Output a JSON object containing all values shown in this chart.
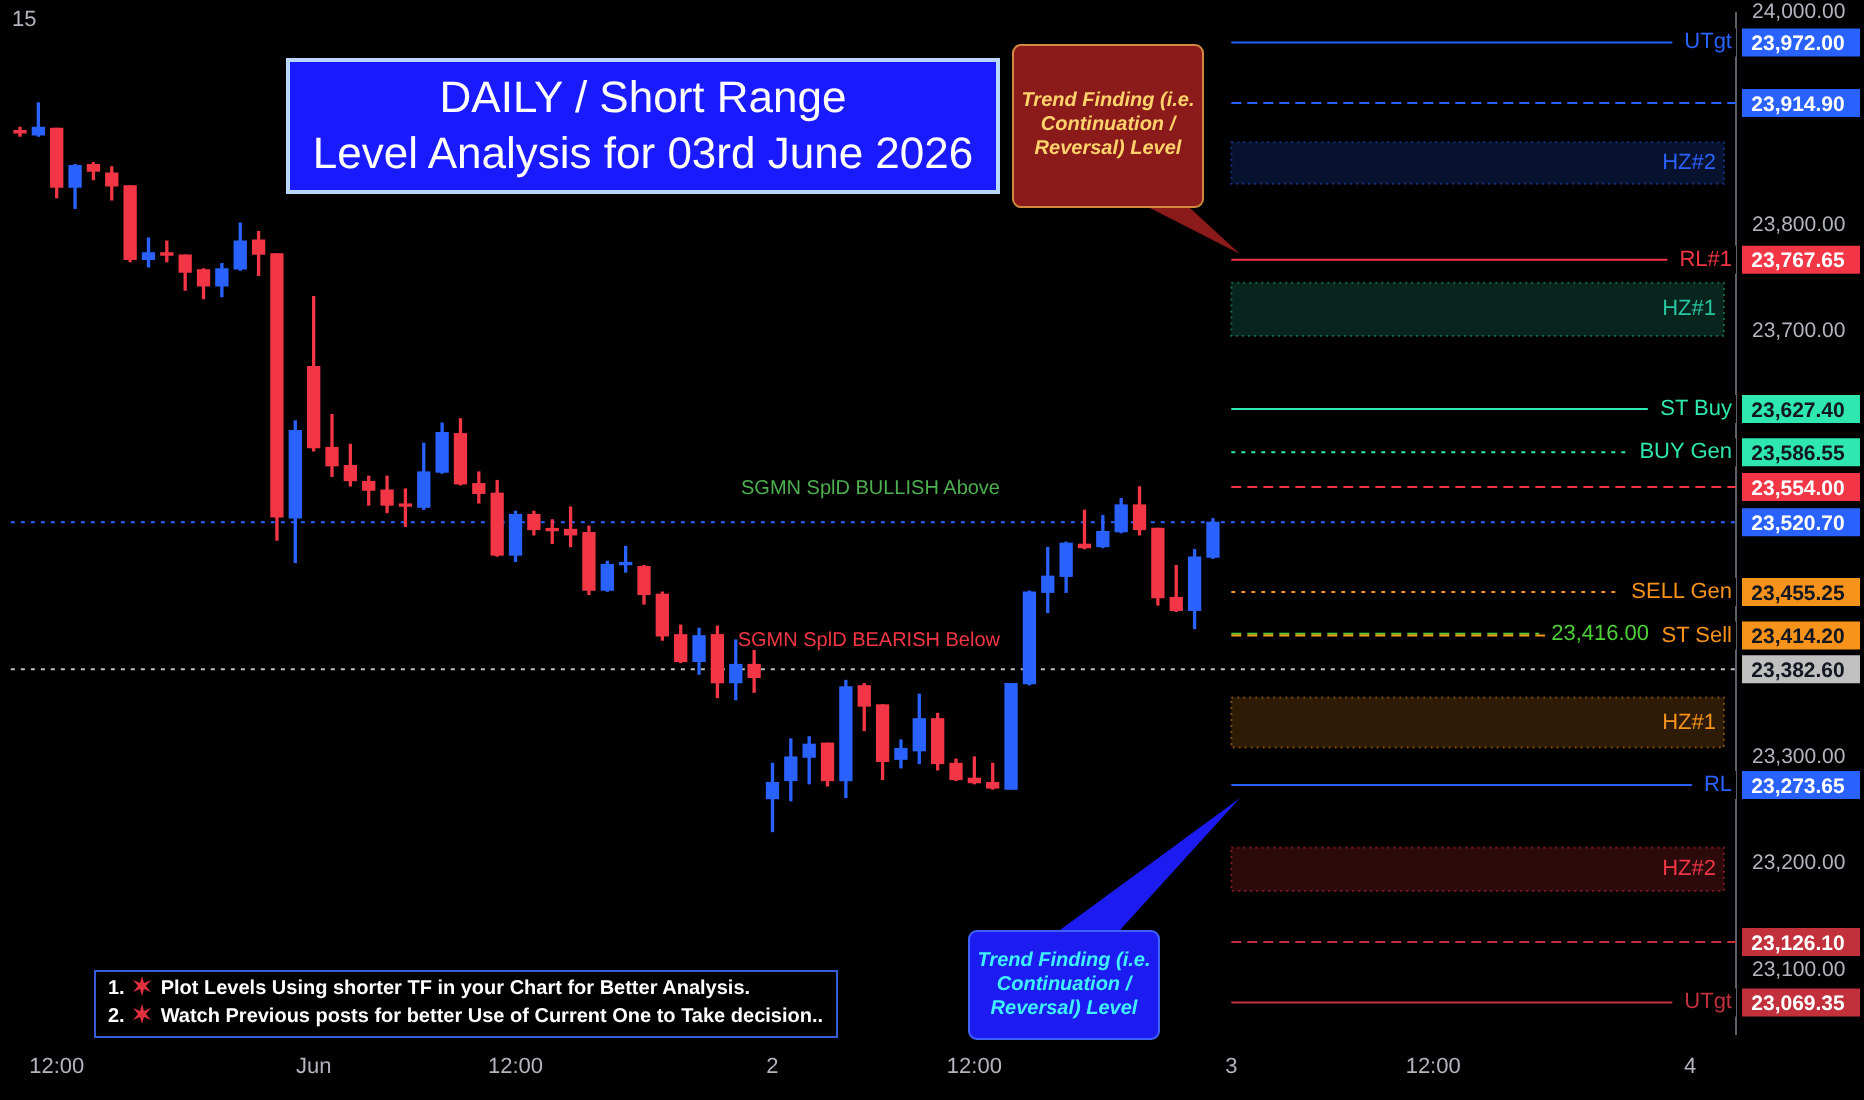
{
  "chart_data": {
    "type": "candlestick",
    "title": "DAILY / Short Range\nLevel Analysis for 03rd June 2026",
    "subtitle": "15",
    "categories": [
      null,
      null,
      "12:00",
      null,
      null,
      null,
      null,
      null,
      null,
      null,
      null,
      null,
      null,
      null,
      null,
      null,
      "Jun",
      null,
      null,
      null,
      null,
      null,
      null,
      null,
      null,
      null,
      null,
      "12:00",
      null,
      null,
      null,
      null,
      null,
      null,
      null,
      null,
      null,
      null,
      null,
      null,
      null,
      "2",
      null,
      null,
      null,
      null,
      null,
      null,
      null,
      null,
      null,
      null,
      "12:00",
      null,
      null,
      null,
      null,
      null,
      null,
      null,
      null,
      null,
      null,
      null,
      null,
      null,
      "3",
      null,
      null,
      null,
      null,
      null,
      null,
      null,
      null,
      null,
      null,
      "12:00",
      null,
      null,
      null,
      null,
      null,
      null,
      null,
      null,
      null,
      null,
      null,
      null,
      null,
      "4",
      null,
      null
    ],
    "ohlc": [
      [
        23888,
        23892,
        23884,
        23887
      ],
      [
        23885,
        23915,
        23884,
        23892
      ],
      [
        23891,
        23891,
        23826,
        23836
      ],
      [
        23836,
        23857,
        23816,
        23856
      ],
      [
        23857,
        23859,
        23843,
        23851
      ],
      [
        23849,
        23855,
        23824,
        23837
      ],
      [
        23837,
        23837,
        23766,
        23768
      ],
      [
        23768,
        23788,
        23761,
        23774
      ],
      [
        23774,
        23785,
        23766,
        23772
      ],
      [
        23772,
        23772,
        23739,
        23756
      ],
      [
        23758,
        23759,
        23731,
        23743
      ],
      [
        23743,
        23764,
        23733,
        23759
      ],
      [
        23759,
        23802,
        23758,
        23785
      ],
      [
        23786,
        23794,
        23753,
        23773
      ],
      [
        23773,
        23773,
        23504,
        23526
      ],
      [
        23525,
        23616,
        23483,
        23607
      ],
      [
        23667,
        23733,
        23588,
        23591
      ],
      [
        23591,
        23622,
        23564,
        23574
      ],
      [
        23574,
        23594,
        23555,
        23560
      ],
      [
        23559,
        23564,
        23537,
        23551
      ],
      [
        23551,
        23564,
        23530,
        23537
      ],
      [
        23537,
        23552,
        23517,
        23536
      ],
      [
        23535,
        23595,
        23533,
        23568
      ],
      [
        23568,
        23614,
        23567,
        23605
      ],
      [
        23604,
        23618,
        23556,
        23557
      ],
      [
        23557,
        23568,
        23539,
        23548
      ],
      [
        23548,
        23560,
        23489,
        23490
      ],
      [
        23490,
        23531,
        23484,
        23528
      ],
      [
        23528,
        23531,
        23509,
        23514
      ],
      [
        23514,
        23523,
        23501,
        23513
      ],
      [
        23514,
        23535,
        23498,
        23509
      ],
      [
        23511,
        23517,
        23453,
        23457
      ],
      [
        23457,
        23484,
        23456,
        23481
      ],
      [
        23481,
        23498,
        23474,
        23482
      ],
      [
        23479,
        23480,
        23444,
        23453
      ],
      [
        23453,
        23455,
        23410,
        23414
      ],
      [
        23415,
        23424,
        23389,
        23390
      ],
      [
        23390,
        23421,
        23378,
        23414
      ],
      [
        23415,
        23423,
        23356,
        23370
      ],
      [
        23370,
        23410,
        23354,
        23387
      ],
      [
        23387,
        23400,
        23361,
        23375
      ],
      [
        23261,
        23294,
        23230,
        23276
      ],
      [
        23278,
        23317,
        23259,
        23300
      ],
      [
        23300,
        23319,
        23275,
        23312
      ],
      [
        23313,
        23313,
        23273,
        23278
      ],
      [
        23278,
        23372,
        23262,
        23366
      ],
      [
        23367,
        23369,
        23325,
        23348
      ],
      [
        23349,
        23349,
        23279,
        23296
      ],
      [
        23298,
        23316,
        23290,
        23308
      ],
      [
        23306,
        23359,
        23294,
        23336
      ],
      [
        23336,
        23341,
        23288,
        23294
      ],
      [
        23294,
        23298,
        23278,
        23279
      ],
      [
        23280,
        23300,
        23275,
        23276
      ],
      [
        23276,
        23294,
        23270,
        23271
      ],
      [
        23270,
        23369,
        23270,
        23369
      ],
      [
        23369,
        23456,
        23368,
        23455
      ],
      [
        23455,
        23497,
        23436,
        23470
      ],
      [
        23470,
        23502,
        23455,
        23501
      ],
      [
        23500,
        23532,
        23496,
        23497
      ],
      [
        23498,
        23527,
        23497,
        23512
      ],
      [
        23512,
        23543,
        23511,
        23537
      ],
      [
        23537,
        23554,
        23509,
        23514
      ],
      [
        23515,
        23515,
        23443,
        23450
      ],
      [
        23450,
        23480,
        23437,
        23438
      ],
      [
        23438,
        23495,
        23421,
        23488
      ],
      [
        23488,
        23524,
        23487,
        23520.7
      ],
      null,
      null,
      null,
      null,
      null,
      null,
      null,
      null,
      null,
      null,
      null,
      null,
      null,
      null,
      null,
      null,
      null,
      null,
      null,
      null,
      null,
      null,
      null,
      null,
      null,
      null,
      null,
      null
    ],
    "colors": [
      "#f23645",
      "#2962ff",
      "#f23645",
      "#2962ff",
      "#f23645",
      "#f23645",
      "#f23645",
      "#2962ff",
      "#f23645",
      "#f23645",
      "#f23645",
      "#2962ff",
      "#2962ff",
      "#f23645",
      "#f23645",
      "#2962ff",
      "#f23645",
      "#f23645",
      "#f23645",
      "#f23645",
      "#f23645",
      "#f23645",
      "#2962ff",
      "#2962ff",
      "#f23645",
      "#f23645",
      "#f23645",
      "#2962ff",
      "#f23645",
      "#f23645",
      "#f23645",
      "#f23645",
      "#2962ff",
      "#2962ff",
      "#f23645",
      "#f23645",
      "#f23645",
      "#2962ff",
      "#f23645",
      "#2962ff",
      "#f23645",
      "#2962ff",
      "#2962ff",
      "#2962ff",
      "#f23645",
      "#2962ff",
      "#f23645",
      "#f23645",
      "#2962ff",
      "#2962ff",
      "#f23645",
      "#f23645",
      "#f23645",
      "#f23645",
      "#2962ff",
      "#2962ff",
      "#2962ff",
      "#2962ff",
      "#f23645",
      "#2962ff",
      "#2962ff",
      "#f23645",
      "#f23645",
      "#f23645",
      "#2962ff",
      "#2962ff",
      null,
      null,
      null,
      null,
      null,
      null,
      null,
      null,
      null,
      null,
      null,
      null,
      null,
      null,
      null,
      null,
      null,
      null,
      null,
      null,
      null,
      null,
      null,
      null,
      null,
      null,
      null,
      null
    ],
    "ylim": [
      23040,
      24000
    ],
    "yticks": [
      {
        "value": 23100,
        "label": "23,100.00"
      },
      {
        "value": 23200,
        "label": "23,200.00"
      },
      {
        "value": 23300,
        "label": "23,300.00"
      },
      {
        "value": 23700,
        "label": "23,700.00"
      },
      {
        "value": 23800,
        "label": "23,800.00"
      },
      {
        "value": 24000,
        "label": "24,000.00"
      },
      {
        "value": 23972,
        "label": "23,972.00"
      },
      {
        "value": 23914.9,
        "label": "23,914.90"
      },
      {
        "value": 23767.65,
        "label": "23,767.65"
      },
      {
        "value": 23627.4,
        "label": "23,627.40"
      },
      {
        "value": 23586.55,
        "label": "23,586.55"
      },
      {
        "value": 23554,
        "label": "23,554.00"
      },
      {
        "value": 23520.7,
        "label": "23,520.70"
      },
      {
        "value": 23455.25,
        "label": "23,455.25"
      },
      {
        "value": 23414.2,
        "label": "23,414.20"
      },
      {
        "value": 23382.6,
        "label": "23,382.60"
      },
      {
        "value": 23273.65,
        "label": "23,273.65"
      },
      {
        "value": 23126.1,
        "label": "23,126.10"
      },
      {
        "value": 23069.35,
        "label": "23,069.35"
      }
    ],
    "ref_lines": [
      {
        "axis": "y",
        "value": 23972,
        "label": "UTgt",
        "color": "#2962ff",
        "line_style": "solid"
      },
      {
        "axis": "y",
        "value": 23914.9,
        "label": null,
        "color": "#2962ff",
        "line_style": "dashed"
      },
      {
        "axis": "y",
        "value": 23767.65,
        "label": "RL#1",
        "color": "#f23645",
        "line_style": "solid"
      },
      {
        "axis": "y",
        "value": 23627.4,
        "label": "ST Buy",
        "color": "#2ee8b0",
        "line_style": "solid"
      },
      {
        "axis": "y",
        "value": 23586.55,
        "label": "BUY Gen",
        "color": "#2ee8b0",
        "line_style": "dotted"
      },
      {
        "axis": "y",
        "value": 23554,
        "label": null,
        "color": "#f23645",
        "line_style": "dashed"
      },
      {
        "axis": "y",
        "value": 23520.7,
        "label": null,
        "color": "#2962ff",
        "line_style": "dotted"
      },
      {
        "axis": "y",
        "value": 23455.25,
        "label": "SELL Gen",
        "color": "#f7931a",
        "line_style": "dotted"
      },
      {
        "axis": "y",
        "value": 23416,
        "label": "23,416.00",
        "color": "#4cd137",
        "line_style": "dashed"
      },
      {
        "axis": "y",
        "value": 23414.2,
        "label": "ST Sell",
        "color": "#f7931a",
        "line_style": "dashed"
      },
      {
        "axis": "y",
        "value": 23382.6,
        "label": null,
        "color": "#c0c0c0",
        "line_style": "dotted"
      },
      {
        "axis": "y",
        "value": 23273.65,
        "label": "RL",
        "color": "#2962ff",
        "line_style": "solid"
      },
      {
        "axis": "y",
        "value": 23126.1,
        "label": null,
        "color": "#c2303c",
        "line_style": "dashed"
      },
      {
        "axis": "y",
        "value": 23069.35,
        "label": "UTgt",
        "color": "#c2303c",
        "line_style": "solid"
      }
    ],
    "bands": [
      {
        "axis": "y",
        "from": 23839,
        "to": 23878,
        "label": "HZ#2",
        "color": "#2962ff"
      },
      {
        "axis": "y",
        "from": 23696,
        "to": 23746,
        "label": "HZ#1",
        "color": "#26c6a0"
      },
      {
        "axis": "y",
        "from": 23309,
        "to": 23356,
        "label": "HZ#1",
        "color": "#f7931a"
      },
      {
        "axis": "y",
        "from": 23174,
        "to": 23215,
        "label": "HZ#2",
        "color": "#f23645"
      }
    ],
    "annotations": [
      "SGMN SplD BULLISH Above",
      "SGMN SplD BEARISH Below",
      "Trend Finding (i.e. Continuation / Reversal) Level",
      "Trend Finding (i.e. Continuation / Reversal) Level",
      "1. Plot Levels Using shorter TF in your Chart for Better Analysis.",
      "2. Watch Previous posts for better Use of Current One to Take decision.."
    ]
  }
}
